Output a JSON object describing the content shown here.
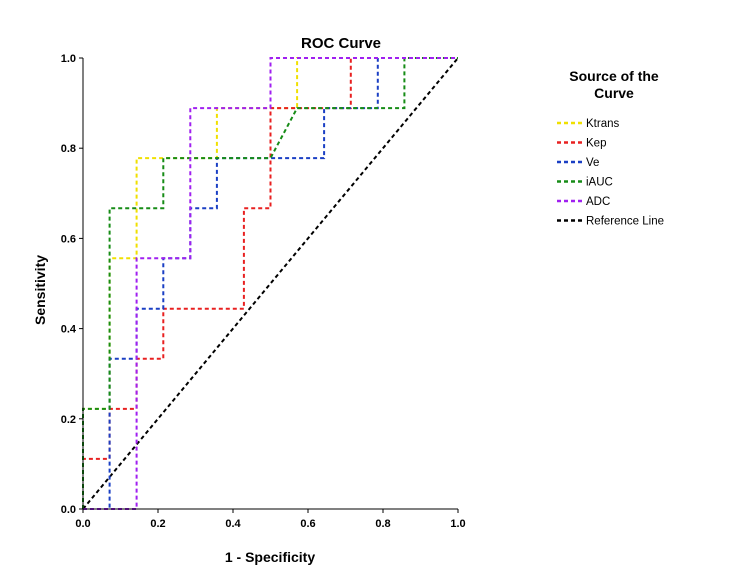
{
  "chart_data": {
    "type": "line",
    "title": "ROC Curve",
    "xlabel": "1 - Specificity",
    "ylabel": "Sensitivity",
    "xlim": [
      0,
      1
    ],
    "ylim": [
      0,
      1
    ],
    "xticks": [
      "0.0",
      "0.2",
      "0.4",
      "0.6",
      "0.8",
      "1.0"
    ],
    "yticks": [
      "0.0",
      "0.2",
      "0.4",
      "0.6",
      "0.8",
      "1.0"
    ],
    "grid": false,
    "legend_title": "Source of the Curve",
    "legend_position": "right",
    "series": [
      {
        "name": "Ktrans",
        "color": "#f0e000",
        "x": [
          0,
          0,
          0.071,
          0.071,
          0.143,
          0.143,
          0.357,
          0.357,
          0.571,
          0.571,
          1.0
        ],
        "y": [
          0,
          0.222,
          0.222,
          0.556,
          0.556,
          0.778,
          0.778,
          0.889,
          0.889,
          1.0,
          1.0
        ]
      },
      {
        "name": "Kep",
        "color": "#e82020",
        "x": [
          0,
          0,
          0.071,
          0.071,
          0.143,
          0.143,
          0.214,
          0.214,
          0.429,
          0.429,
          0.5,
          0.5,
          0.714,
          0.714,
          1.0
        ],
        "y": [
          0,
          0.111,
          0.111,
          0.222,
          0.222,
          0.333,
          0.333,
          0.444,
          0.444,
          0.667,
          0.667,
          0.889,
          0.889,
          1.0,
          1.0
        ]
      },
      {
        "name": "Ve",
        "color": "#1a3fc4",
        "x": [
          0,
          0.071,
          0.071,
          0.143,
          0.143,
          0.214,
          0.214,
          0.286,
          0.286,
          0.357,
          0.357,
          0.5,
          0.5,
          0.643,
          0.643,
          0.786,
          0.786,
          1.0
        ],
        "y": [
          0,
          0,
          0.333,
          0.333,
          0.444,
          0.444,
          0.556,
          0.556,
          0.667,
          0.667,
          0.778,
          0.778,
          0.778,
          0.778,
          0.889,
          0.889,
          1.0,
          1.0
        ]
      },
      {
        "name": "iAUC",
        "color": "#168c16",
        "x": [
          0,
          0,
          0.071,
          0.071,
          0.214,
          0.214,
          0.5,
          0.571,
          0.857,
          0.857,
          1.0
        ],
        "y": [
          0,
          0.222,
          0.222,
          0.667,
          0.667,
          0.778,
          0.778,
          0.889,
          0.889,
          1.0,
          1.0
        ]
      },
      {
        "name": "ADC",
        "color": "#a020f0",
        "x": [
          0,
          0.143,
          0.143,
          0.286,
          0.286,
          0.5,
          0.5,
          1.0
        ],
        "y": [
          0,
          0,
          0.556,
          0.556,
          0.889,
          0.889,
          1.0,
          1.0
        ]
      },
      {
        "name": "Reference Line",
        "color": "#000000",
        "x": [
          0,
          1
        ],
        "y": [
          0,
          1
        ]
      }
    ]
  }
}
